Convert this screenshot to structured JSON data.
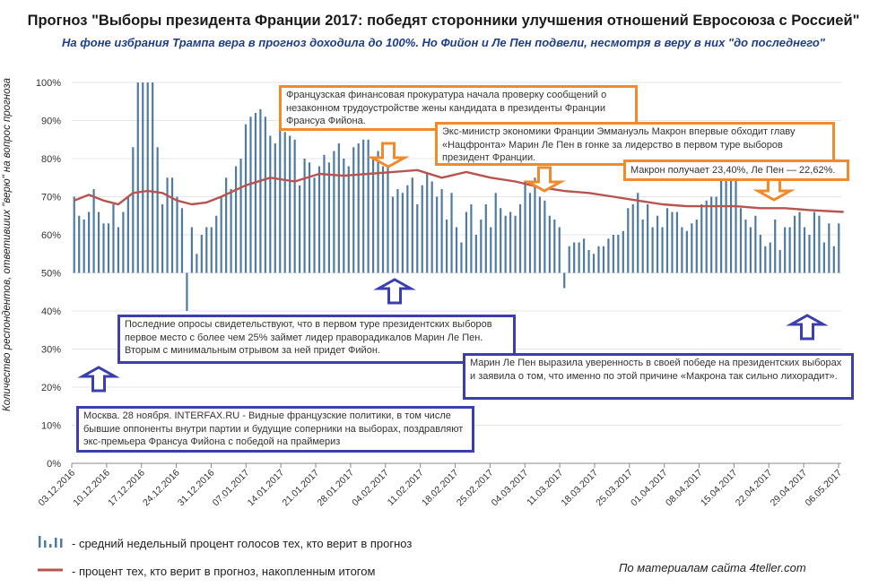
{
  "header": {
    "title": "Прогноз \"Выборы президента Франции 2017: победят сторонники улучшения отношений Евросоюза с Россией\"",
    "subtitle": "На фоне избрания Трампа вера в прогноз доходила до 100%. Но Фийон и Ле Пен подвели, несмотря в веру в них \"до последнего\""
  },
  "colors": {
    "bar": "#4f7ba3",
    "line": "#b85450",
    "grid": "#e6e6e6",
    "orange_box": "#f08a2a",
    "blue_box": "#3b3fad"
  },
  "chart_data": {
    "type": "bar",
    "ylabel": "Количество респондентов, ответивших \"верю\" на вопрос прогноза",
    "ylim": [
      0,
      100
    ],
    "y_ticks": [
      "0%",
      "10%",
      "20%",
      "30%",
      "40%",
      "50%",
      "60%",
      "70%",
      "80%",
      "90%",
      "100%"
    ],
    "bar_baseline": 50,
    "grid": true,
    "x_ticks": [
      "03.12.2016",
      "10.12.2016",
      "17.12.2016",
      "24.12.2016",
      "31.12.2016",
      "07.01.2017",
      "14.01.2017",
      "21.01.2017",
      "28.01.2017",
      "04.02.2017",
      "11.02.2017",
      "18.02.2017",
      "25.02.2017",
      "04.03.2017",
      "11.03.2017",
      "18.03.2017",
      "25.03.2017",
      "01.04.2017",
      "08.04.2017",
      "15.04.2017",
      "22.04.2017",
      "29.04.2017",
      "06.05.2017"
    ],
    "series": [
      {
        "name": "средний недельный процент голосов тех, кто верит в прогноз",
        "type": "bar",
        "values": [
          70,
          65,
          64,
          66,
          72,
          66,
          63,
          63,
          68,
          62,
          66,
          70,
          83,
          100,
          100,
          100,
          100,
          83,
          68,
          75,
          75,
          70,
          67,
          40,
          62,
          55,
          60,
          62,
          62,
          65,
          70,
          75,
          72,
          78,
          80,
          89,
          91,
          92,
          93,
          91,
          86,
          84,
          88,
          87,
          86,
          85,
          73,
          80,
          79,
          75,
          78,
          81,
          79,
          82,
          84,
          80,
          78,
          83,
          84,
          85,
          85,
          80,
          82,
          78,
          80,
          70,
          72,
          71,
          73,
          75,
          68,
          73,
          76,
          74,
          70,
          72,
          64,
          71,
          62,
          58,
          66,
          68,
          60,
          64,
          68,
          62,
          71,
          67,
          65,
          66,
          65,
          68,
          74,
          71,
          75,
          70,
          69,
          65,
          64,
          62,
          46,
          57,
          58,
          58,
          59,
          56,
          55,
          57,
          57,
          59,
          60,
          60,
          61,
          67,
          68,
          71,
          64,
          68,
          62,
          65,
          62,
          67,
          66,
          66,
          62,
          61,
          63,
          64,
          68,
          69,
          70,
          70,
          75,
          80,
          79,
          75,
          67,
          64,
          62,
          65,
          60,
          57,
          58,
          64,
          56,
          62,
          62,
          65,
          66,
          62,
          60,
          66,
          65,
          58,
          63,
          57,
          63
        ]
      },
      {
        "name": "процент тех, кто верит в прогноз, накопленным итогом",
        "type": "line",
        "x": [
          0,
          3,
          6,
          9,
          12,
          15,
          18,
          21,
          24,
          27,
          30,
          35,
          40,
          45,
          50,
          55,
          60,
          65,
          70,
          75,
          80,
          85,
          90,
          95,
          100,
          105,
          110,
          115,
          120,
          125,
          130,
          135,
          140,
          145,
          150,
          157
        ],
        "values": [
          69,
          70.5,
          69,
          68,
          71,
          71.5,
          71,
          69,
          68,
          68.5,
          70,
          73,
          75,
          74,
          76,
          75.5,
          76,
          76.5,
          77,
          75,
          76.5,
          75,
          74,
          72.5,
          71.5,
          71,
          70,
          69,
          68,
          67.5,
          67.5,
          67.5,
          67,
          67,
          66.5,
          66
        ]
      }
    ]
  },
  "annotations": {
    "orange_1": "Французская финансовая прокуратура начала проверку сообщений о незаконном трудоустройстве жены кандидата в президенты Франции Франсуа Фийона.",
    "orange_2": "Экс-министр экономики Франции Эммануэль Макрон впервые обходит главу «Нацфронта» Марин Ле Пен в гонке за лидерство в первом туре выборов президент Франции.",
    "orange_3": "Макрон получает 23,40%, Ле Пен — 22,62%.",
    "blue_1": "Последние опросы свидетельствуют, что в первом туре президентских выборов первое место с более чем 25% займет лидер праворадикалов Марин Ле Пен. Вторым с минимальным отрывом за ней придет Фийон.",
    "blue_2": "Марин Ле Пен выразила уверенность в своей победе на президентских выборах и заявила о том, что именно по этой причине «Макрона так сильно лихорадит».",
    "blue_3": "Москва. 28 ноября. INTERFAX.RU - Видные французские политики, в том числе бывшие оппоненты внутри партии и будущие соперники на выборах, поздравляют экс-премьера Франсуа Фийона с победой на праймериз"
  },
  "legend": {
    "bar_label": "- средний недельный процент голосов тех, кто верит в прогноз",
    "line_label": "- процент тех, кто верит в прогноз, накопленным итогом"
  },
  "footer": {
    "source": "По материалам сайта 4teller.com"
  }
}
